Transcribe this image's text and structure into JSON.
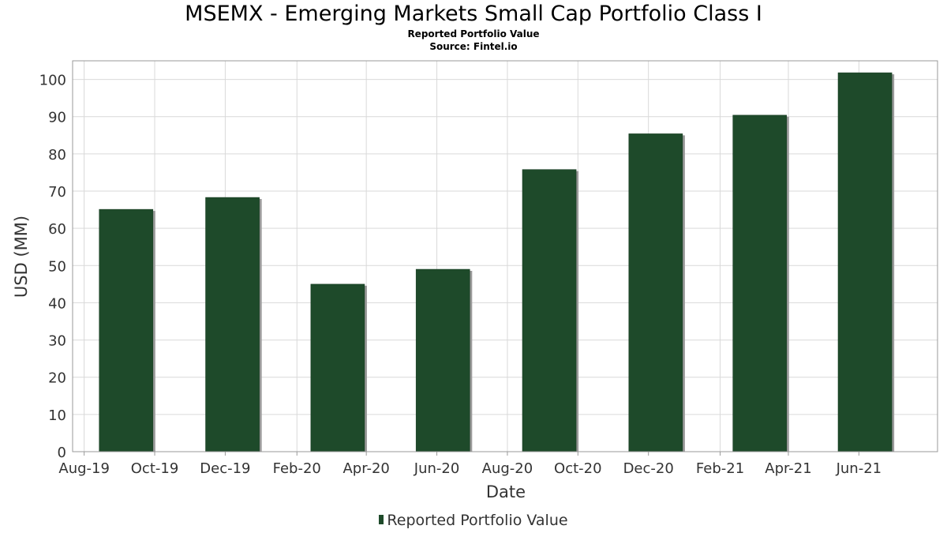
{
  "title": "MSEMX - Emerging Markets Small Cap Portfolio Class I",
  "subtitle": "Reported Portfolio Value",
  "source": "Source: Fintel.io",
  "colors": {
    "bar": "#1e4a2a",
    "bar_shadow": "#9a9a9a",
    "grid": "#d9d9d9",
    "axis_text": "#333333"
  },
  "chart_data": {
    "type": "bar",
    "title": "MSEMX - Emerging Markets Small Cap Portfolio Class I",
    "xlabel": "Date",
    "ylabel": "USD (MM)",
    "x_ticks": [
      "Aug-19",
      "Oct-19",
      "Dec-19",
      "Feb-20",
      "Apr-20",
      "Jun-20",
      "Aug-20",
      "Oct-20",
      "Dec-20",
      "Feb-21",
      "Apr-21",
      "Jun-21"
    ],
    "y_ticks": [
      0,
      10,
      20,
      30,
      40,
      50,
      60,
      70,
      80,
      90,
      100
    ],
    "ylim": [
      0,
      105
    ],
    "xlim": [
      "2019-07-22",
      "2021-08-08"
    ],
    "grid": true,
    "legend_position": "bottom",
    "series": [
      {
        "name": "Reported Portfolio Value",
        "x": [
          "2019-09-30",
          "2019-12-31",
          "2020-03-31",
          "2020-06-30",
          "2020-09-30",
          "2020-12-31",
          "2021-03-31",
          "2021-06-30"
        ],
        "values": [
          65.1,
          68.3,
          45.0,
          49.0,
          75.8,
          85.4,
          90.4,
          101.8
        ]
      }
    ]
  }
}
